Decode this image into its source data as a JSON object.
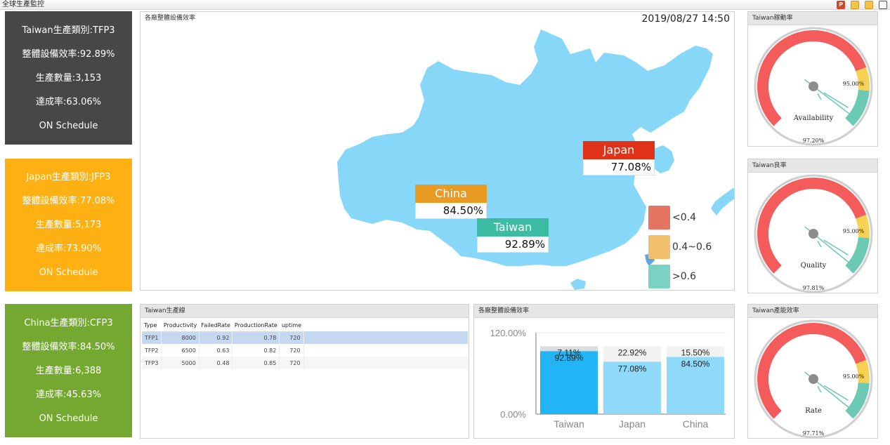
{
  "topbar": {
    "title": "全球生產監控",
    "tools": [
      "ppt-icon",
      "export-icon",
      "export-all-icon",
      "fullscreen-icon"
    ]
  },
  "cards": {
    "taiwan": {
      "line1": "Taiwan生產類別:TFP3",
      "line2": "整體設備效率:92.89%",
      "line3": "生產數量:3,153",
      "line4": "達成率:63.06%",
      "line5": "ON Schedule",
      "color": "#474747"
    },
    "japan": {
      "line1": "Japan生產類別:JFP3",
      "line2": "整體設備效率:77.08%",
      "line3": "生產數量:5,173",
      "line4": "達成率:73.90%",
      "line5": "ON Schedule",
      "color": "#ffb012"
    },
    "china": {
      "line1": "China生產類別:CFP3",
      "line2": "整體設備效率:84.50%",
      "line3": "生產數量:6,388",
      "line4": "達成率:45.63%",
      "line5": "ON Schedule",
      "color": "#74a830"
    }
  },
  "map": {
    "title": "各廠整體設備效率",
    "datetime": "2019/08/27 14:50",
    "flags": [
      {
        "name": "Japan",
        "value": "77.08%",
        "color": "#df3216"
      },
      {
        "name": "China",
        "value": "84.50%",
        "color": "#e99a22"
      },
      {
        "name": "Taiwan",
        "value": "92.89%",
        "color": "#3bbca3"
      }
    ],
    "legend": [
      {
        "label": "<0.4",
        "color": "#e57461"
      },
      {
        "label": "0.4~0.6",
        "color": "#f2c06c"
      },
      {
        "label": ">0.6",
        "color": "#7ad3c2"
      }
    ]
  },
  "gauges": [
    {
      "title": "Taiwan稼動率",
      "label": "Availability",
      "value_text": "97.20%",
      "value": 97.2,
      "marker_text": "95.00%",
      "marker": 95
    },
    {
      "title": "Taiwan良率",
      "label": "Quality",
      "value_text": "97.81%",
      "value": 97.81,
      "marker_text": "95.00%",
      "marker": 95
    },
    {
      "title": "Taiwan產能效率",
      "label": "Rate",
      "value_text": "97.71%",
      "value": 97.71,
      "marker_text": "95.00%",
      "marker": 95
    }
  ],
  "table": {
    "title": "Taiwan生產線",
    "columns": [
      "Type",
      "Productivity",
      "FailedRate",
      "ProductionRate",
      "uptime"
    ],
    "rows": [
      [
        "TFP1",
        "8000",
        "0.92",
        "0.78",
        "720"
      ],
      [
        "TFP2",
        "6500",
        "0.63",
        "0.82",
        "720"
      ],
      [
        "TFP3",
        "5000",
        "0.48",
        "0.85",
        "720"
      ]
    ]
  },
  "chart_data": {
    "type": "bar",
    "title": "各廠整體設備效率",
    "categories": [
      "Taiwan",
      "Japan",
      "China"
    ],
    "series": [
      {
        "values": [
          92.89,
          77.08,
          84.5
        ],
        "labels": [
          "92.89%",
          "77.08%",
          "84.50%"
        ],
        "colors": [
          "#22b4f5",
          "#8fd9fb",
          "#8fd9fb"
        ]
      },
      {
        "values": [
          7.11,
          22.92,
          15.5
        ],
        "labels": [
          "7.11%",
          "22.92%",
          "15.50%"
        ],
        "colors": [
          "#dcdcdc",
          "#f2f2f2",
          "#f2f2f2"
        ]
      }
    ],
    "ylim": [
      0,
      120
    ],
    "yticks": [
      "0.00%",
      "120.00%"
    ],
    "stacked": true,
    "grid": false
  }
}
